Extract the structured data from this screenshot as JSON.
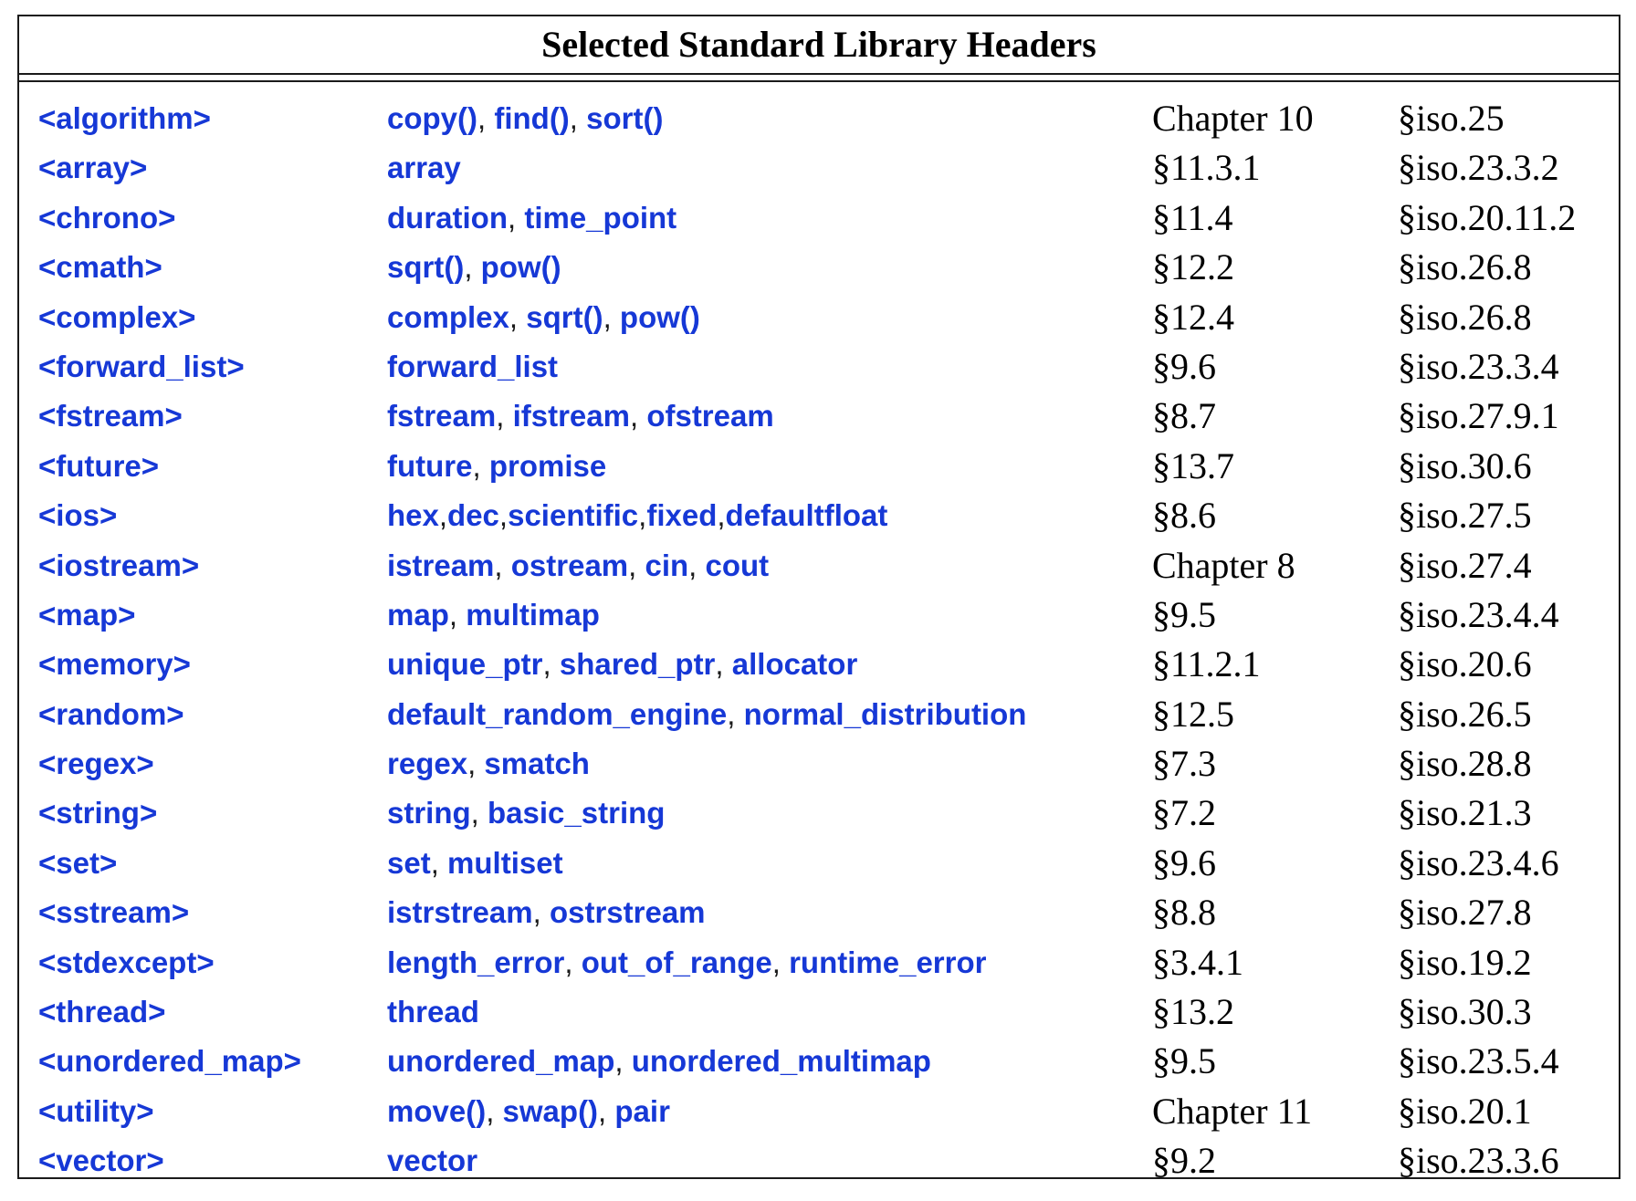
{
  "table": {
    "title": "Selected Standard Library Headers",
    "rows": [
      {
        "header": "<algorithm>",
        "facilities": [
          "copy()",
          "find()",
          "sort()"
        ],
        "sep": ", ",
        "tour": "Chapter 10",
        "iso": "§iso.25"
      },
      {
        "header": "<array>",
        "facilities": [
          "array"
        ],
        "sep": ", ",
        "tour": "§11.3.1",
        "iso": "§iso.23.3.2"
      },
      {
        "header": "<chrono>",
        "facilities": [
          "duration",
          "time_point"
        ],
        "sep": ", ",
        "tour": "§11.4",
        "iso": "§iso.20.11.2"
      },
      {
        "header": "<cmath>",
        "facilities": [
          "sqrt()",
          "pow()"
        ],
        "sep": ", ",
        "tour": "§12.2",
        "iso": "§iso.26.8"
      },
      {
        "header": "<complex>",
        "facilities": [
          "complex",
          "sqrt()",
          "pow()"
        ],
        "sep": ", ",
        "tour": "§12.4",
        "iso": "§iso.26.8"
      },
      {
        "header": "<forward_list>",
        "facilities": [
          "forward_list"
        ],
        "sep": ", ",
        "tour": "§9.6",
        "iso": "§iso.23.3.4"
      },
      {
        "header": "<fstream>",
        "facilities": [
          "fstream",
          "ifstream",
          "ofstream"
        ],
        "sep": ", ",
        "tour": "§8.7",
        "iso": "§iso.27.9.1"
      },
      {
        "header": "<future>",
        "facilities": [
          "future",
          "promise"
        ],
        "sep": ", ",
        "tour": "§13.7",
        "iso": "§iso.30.6"
      },
      {
        "header": "<ios>",
        "facilities": [
          "hex",
          "dec",
          "scientific",
          "fixed",
          "defaultfloat"
        ],
        "sep": ",",
        "tour": "§8.6",
        "iso": "§iso.27.5"
      },
      {
        "header": "<iostream>",
        "facilities": [
          "istream",
          "ostream",
          "cin",
          "cout"
        ],
        "sep": ", ",
        "tour": "Chapter 8",
        "iso": "§iso.27.4"
      },
      {
        "header": "<map>",
        "facilities": [
          "map",
          "multimap"
        ],
        "sep": ", ",
        "tour": "§9.5",
        "iso": "§iso.23.4.4"
      },
      {
        "header": "<memory>",
        "facilities": [
          "unique_ptr",
          "shared_ptr",
          "allocator"
        ],
        "sep": ", ",
        "tour": "§11.2.1",
        "iso": "§iso.20.6"
      },
      {
        "header": "<random>",
        "facilities": [
          "default_random_engine",
          "normal_distribution"
        ],
        "sep": ", ",
        "tour": "§12.5",
        "iso": "§iso.26.5"
      },
      {
        "header": "<regex>",
        "facilities": [
          "regex",
          "smatch"
        ],
        "sep": ", ",
        "tour": "§7.3",
        "iso": "§iso.28.8"
      },
      {
        "header": "<string>",
        "facilities": [
          "string",
          "basic_string"
        ],
        "sep": ", ",
        "tour": "§7.2",
        "iso": "§iso.21.3"
      },
      {
        "header": "<set>",
        "facilities": [
          "set",
          "multiset"
        ],
        "sep": ", ",
        "tour": "§9.6",
        "iso": "§iso.23.4.6"
      },
      {
        "header": "<sstream>",
        "facilities": [
          "istrstream",
          "ostrstream"
        ],
        "sep": ", ",
        "tour": "§8.8",
        "iso": "§iso.27.8"
      },
      {
        "header": "<stdexcept>",
        "facilities": [
          "length_error",
          "out_of_range",
          "runtime_error"
        ],
        "sep": ", ",
        "tour": "§3.4.1",
        "iso": "§iso.19.2"
      },
      {
        "header": "<thread>",
        "facilities": [
          "thread"
        ],
        "sep": ", ",
        "tour": "§13.2",
        "iso": "§iso.30.3"
      },
      {
        "header": "<unordered_map>",
        "facilities": [
          "unordered_map",
          "unordered_multimap"
        ],
        "sep": ", ",
        "tour": "§9.5",
        "iso": "§iso.23.5.4"
      },
      {
        "header": "<utility>",
        "facilities": [
          "move()",
          "swap()",
          "pair"
        ],
        "sep": ", ",
        "tour": "Chapter 11",
        "iso": "§iso.20.1"
      },
      {
        "header": "<vector>",
        "facilities": [
          "vector"
        ],
        "sep": ", ",
        "tour": "§9.2",
        "iso": "§iso.23.3.6"
      }
    ]
  }
}
